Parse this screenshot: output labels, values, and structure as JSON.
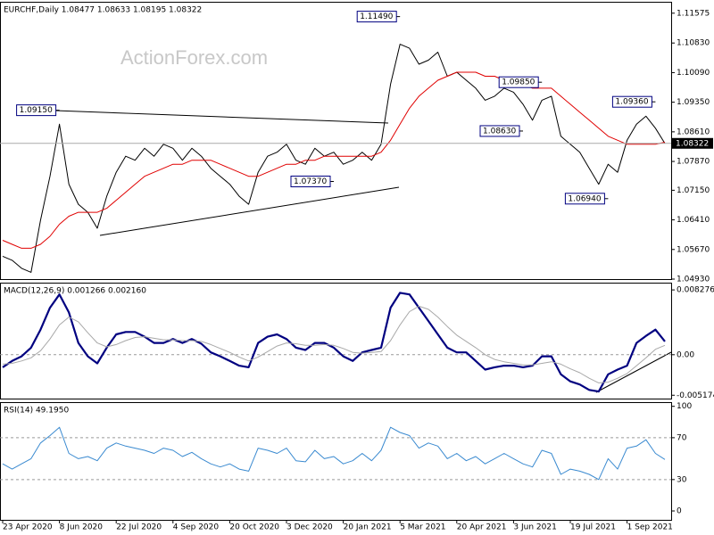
{
  "chart_data": [
    {
      "type": "line",
      "title": "EURCHF,Daily 1.08477 1.08633 1.08195 1.08322",
      "watermark": "ActionForex.com",
      "ylim": [
        1.0493,
        1.1186
      ],
      "yticks": [
        1.11575,
        {
          "value": 1.1083,
          "label": "1.10830"
        },
        {
          "value": 1.1009,
          "label": "1.10090"
        },
        {
          "value": 1.0935,
          "label": "1.09350"
        },
        {
          "value": 1.0861,
          "label": "1.08610"
        },
        {
          "value": 1.0787,
          "label": "1.07870"
        },
        {
          "value": 1.0715,
          "label": "1.07150"
        },
        {
          "value": 1.0641,
          "label": "1.06410"
        },
        {
          "value": 1.0567,
          "label": "1.05670"
        },
        {
          "value": 1.0493,
          "label": "1.04930"
        }
      ],
      "last_price": 1.08322,
      "annotations": [
        {
          "value": 1.0915,
          "label": "1.09150",
          "index": 6
        },
        {
          "value": 1.1149,
          "label": "1.11490",
          "index": 42
        },
        {
          "value": 1.0737,
          "label": "1.07370",
          "index": 35
        },
        {
          "value": 1.0985,
          "label": "1.09850",
          "index": 57
        },
        {
          "value": 1.0863,
          "label": "1.08630",
          "index": 55
        },
        {
          "value": 1.0936,
          "label": "1.09360",
          "index": 69
        },
        {
          "value": 1.0694,
          "label": "1.06940",
          "index": 64
        }
      ],
      "series": [
        {
          "name": "EURCHF",
          "color": "#000000",
          "width": 1,
          "values": [
            1.055,
            1.054,
            1.052,
            1.051,
            1.064,
            1.075,
            1.088,
            1.073,
            1.068,
            1.066,
            1.062,
            1.07,
            1.076,
            1.08,
            1.079,
            1.082,
            1.08,
            1.083,
            1.082,
            1.079,
            1.082,
            1.08,
            1.077,
            1.075,
            1.073,
            1.07,
            1.068,
            1.076,
            1.08,
            1.081,
            1.083,
            1.079,
            1.078,
            1.082,
            1.08,
            1.081,
            1.078,
            1.079,
            1.081,
            1.079,
            1.083,
            1.098,
            1.108,
            1.107,
            1.103,
            1.104,
            1.106,
            1.1,
            1.101,
            1.099,
            1.097,
            1.094,
            1.095,
            1.097,
            1.096,
            1.093,
            1.089,
            1.094,
            1.095,
            1.085,
            1.083,
            1.081,
            1.077,
            1.073,
            1.078,
            1.076,
            1.084,
            1.088,
            1.09,
            1.087,
            1.0832
          ]
        },
        {
          "name": "MA",
          "color": "#e00000",
          "width": 1,
          "values": [
            1.059,
            1.058,
            1.057,
            1.057,
            1.058,
            1.06,
            1.063,
            1.065,
            1.066,
            1.066,
            1.066,
            1.067,
            1.069,
            1.071,
            1.073,
            1.075,
            1.076,
            1.077,
            1.078,
            1.078,
            1.079,
            1.079,
            1.079,
            1.078,
            1.077,
            1.076,
            1.075,
            1.075,
            1.076,
            1.077,
            1.078,
            1.078,
            1.079,
            1.079,
            1.08,
            1.08,
            1.08,
            1.08,
            1.08,
            1.08,
            1.081,
            1.084,
            1.088,
            1.092,
            1.095,
            1.097,
            1.099,
            1.1,
            1.101,
            1.101,
            1.101,
            1.1,
            1.1,
            1.099,
            1.099,
            1.098,
            1.097,
            1.097,
            1.097,
            1.095,
            1.093,
            1.091,
            1.089,
            1.087,
            1.085,
            1.084,
            1.083,
            1.083,
            1.083,
            1.083,
            1.0835
          ]
        }
      ]
    },
    {
      "type": "line",
      "title": "MACD(12,26,9) 0.001266 0.002160",
      "ylim": [
        -0.0056,
        0.0092
      ],
      "yticks": [
        0.008276,
        {
          "value": 0,
          "label": "0.00"
        },
        -0.005174
      ],
      "levels": [
        0
      ],
      "series": [
        {
          "name": "MACD",
          "color": "#000080",
          "width": 2.2,
          "values": [
            -0.0016,
            -0.0008,
            -0.0002,
            0.0009,
            0.0032,
            0.006,
            0.0077,
            0.0054,
            0.0015,
            -0.0002,
            -0.0011,
            0.0009,
            0.0026,
            0.0029,
            0.0029,
            0.0023,
            0.0015,
            0.0015,
            0.002,
            0.0015,
            0.002,
            0.0014,
            0.0003,
            -0.0002,
            -0.0008,
            -0.0014,
            -0.0016,
            0.0015,
            0.0023,
            0.0026,
            0.002,
            0.0009,
            0.0006,
            0.0015,
            0.0015,
            0.0009,
            -0.0002,
            -0.0008,
            0.0003,
            0.0006,
            0.0009,
            0.006,
            0.0079,
            0.0077,
            0.006,
            0.0043,
            0.0026,
            0.0009,
            0.0003,
            0.0003,
            -0.0008,
            -0.0019,
            -0.0016,
            -0.0014,
            -0.0014,
            -0.0016,
            -0.0014,
            -0.0002,
            -0.0002,
            -0.0025,
            -0.0034,
            -0.0038,
            -0.0045,
            -0.0047,
            -0.0025,
            -0.0019,
            -0.0014,
            0.0015,
            0.0024,
            0.0032,
            0.0017
          ]
        },
        {
          "name": "Signal",
          "color": "#a8a8a8",
          "width": 1,
          "values": [
            -0.0012,
            -0.0011,
            -0.0008,
            -0.0004,
            0.0005,
            0.002,
            0.0038,
            0.0048,
            0.0042,
            0.0028,
            0.0015,
            0.001,
            0.0013,
            0.0018,
            0.0022,
            0.0023,
            0.0021,
            0.0019,
            0.0019,
            0.0018,
            0.0018,
            0.0017,
            0.0013,
            0.0008,
            0.0003,
            -0.0003,
            -0.0008,
            -0.0003,
            0.0004,
            0.0011,
            0.0015,
            0.0014,
            0.0012,
            0.0012,
            0.0013,
            0.0012,
            0.0008,
            0.0003,
            0.0002,
            0.0003,
            0.0004,
            0.0018,
            0.0038,
            0.0055,
            0.0062,
            0.0058,
            0.0048,
            0.0036,
            0.0025,
            0.0017,
            0.0009,
            0,
            -0.0006,
            -0.0009,
            -0.0011,
            -0.0013,
            -0.0013,
            -0.0011,
            -0.0009,
            -0.0012,
            -0.0018,
            -0.0023,
            -0.003,
            -0.0036,
            -0.0035,
            -0.003,
            -0.0024,
            -0.0014,
            -0.0004,
            0.0007,
            0.0012
          ]
        }
      ]
    },
    {
      "type": "line",
      "title": "RSI(14) 49.1950",
      "ylim": [
        -8.5,
        104
      ],
      "yticks": [
        100,
        70,
        30,
        0
      ],
      "levels": [
        70,
        30
      ],
      "categories": [
        "23 Apr 2020",
        null,
        null,
        null,
        null,
        null,
        "8 Jun 2020",
        null,
        null,
        null,
        null,
        null,
        "22 Jul 2020",
        null,
        null,
        null,
        null,
        null,
        "4 Sep 2020",
        null,
        null,
        null,
        null,
        null,
        "20 Oct 2020",
        null,
        null,
        null,
        null,
        null,
        "3 Dec 2020",
        null,
        null,
        null,
        null,
        null,
        "20 Jan 2021",
        null,
        null,
        null,
        null,
        null,
        "5 Mar 2021",
        null,
        null,
        null,
        null,
        null,
        "20 Apr 2021",
        null,
        null,
        null,
        null,
        null,
        "3 Jun 2021",
        null,
        null,
        null,
        null,
        null,
        "19 Jul 2021",
        null,
        null,
        null,
        null,
        null,
        "1 Sep 2021",
        null,
        null,
        null,
        null
      ],
      "series": [
        {
          "name": "RSI",
          "color": "#3a8ad0",
          "width": 1,
          "values": [
            45,
            40,
            45,
            50,
            65,
            72,
            80,
            55,
            50,
            52,
            48,
            60,
            65,
            62,
            60,
            58,
            55,
            60,
            58,
            52,
            56,
            50,
            45,
            42,
            45,
            40,
            38,
            60,
            58,
            55,
            60,
            48,
            47,
            58,
            50,
            52,
            45,
            48,
            55,
            48,
            58,
            80,
            75,
            72,
            60,
            65,
            62,
            50,
            55,
            48,
            52,
            45,
            50,
            55,
            50,
            45,
            42,
            58,
            55,
            35,
            40,
            38,
            35,
            30,
            50,
            40,
            60,
            62,
            68,
            55,
            49.195
          ]
        }
      ]
    }
  ]
}
